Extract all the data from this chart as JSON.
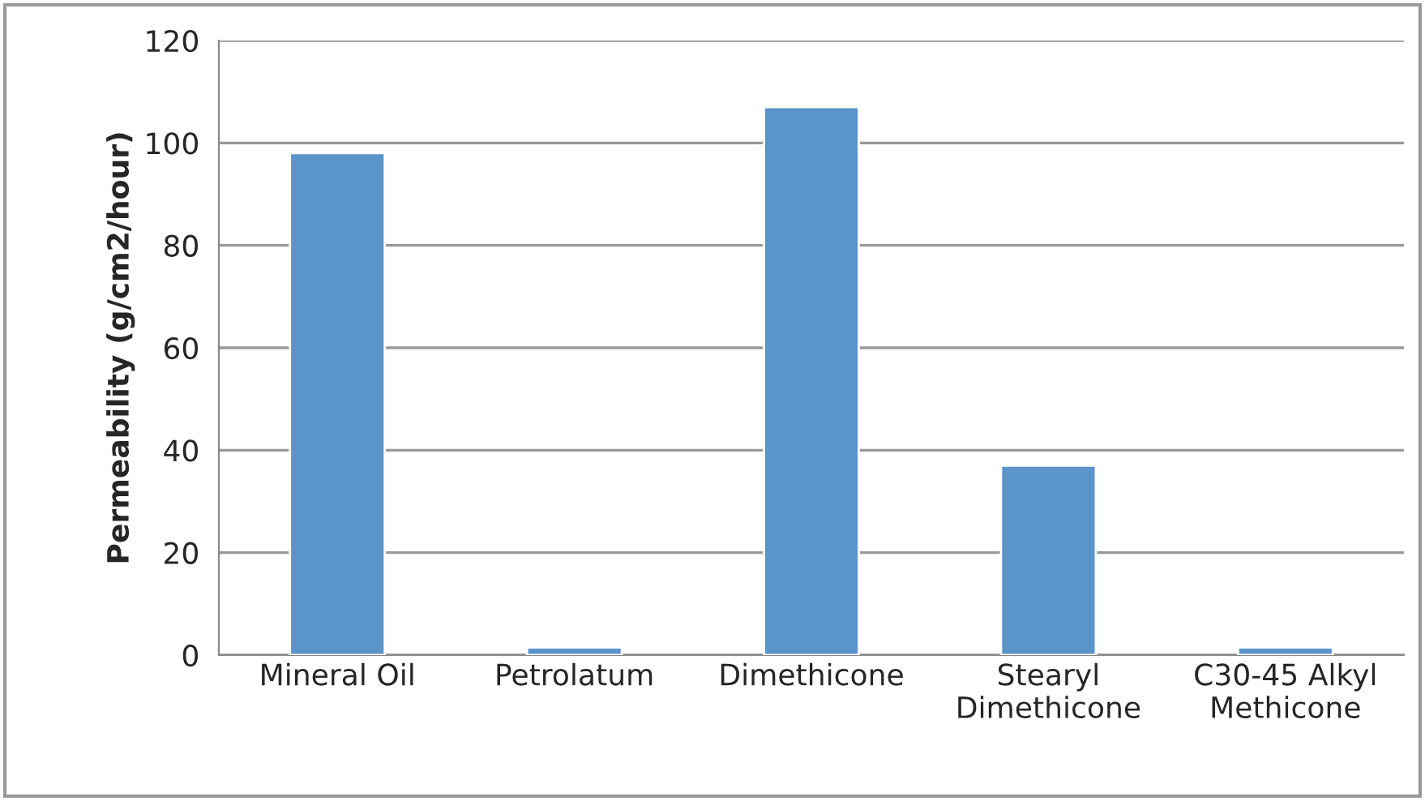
{
  "chart_data": {
    "type": "bar",
    "ylabel": "Permeability (g/cm2/hour)",
    "categories": [
      "Mineral Oil",
      "Petrolatum",
      "Dimethicone",
      "Stearyl\nDimethicone",
      "C30-45 Alkyl\nMethicone"
    ],
    "values": [
      98,
      1.5,
      107,
      37,
      1.5
    ],
    "color": "#5b93cb",
    "ylim": [
      0,
      120
    ],
    "yticks": [
      0,
      20,
      40,
      60,
      80,
      100,
      120
    ],
    "grid": "y"
  }
}
